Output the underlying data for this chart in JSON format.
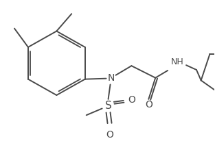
{
  "bg_color": "#ffffff",
  "line_color": "#4a4a4a",
  "line_width": 1.4,
  "figsize": [
    3.13,
    2.06
  ],
  "dpi": 100,
  "xlim": [
    0,
    313
  ],
  "ylim": [
    0,
    206
  ]
}
